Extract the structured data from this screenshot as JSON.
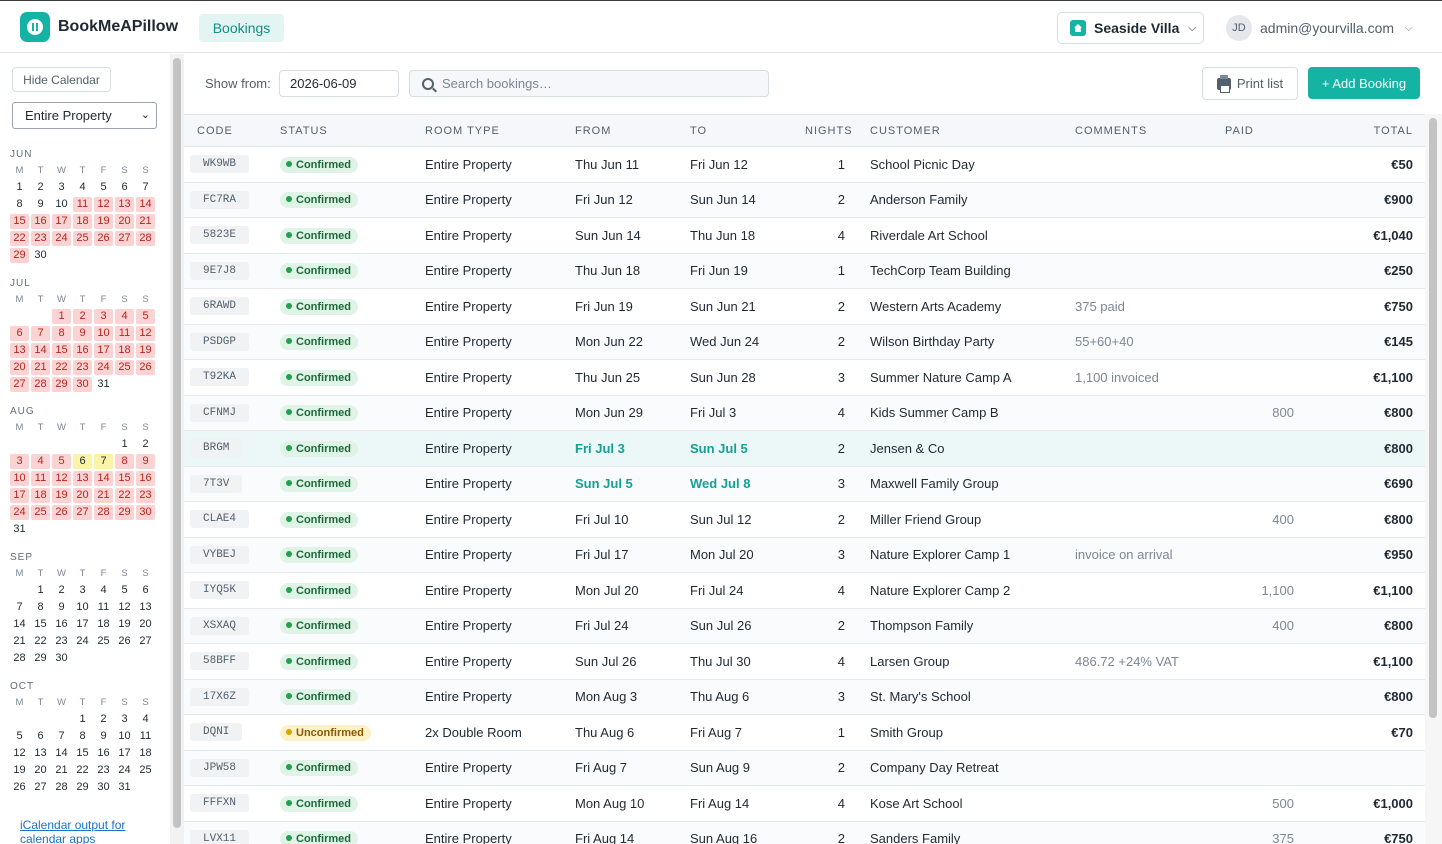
{
  "header": {
    "app_title": "BookMeAPillow",
    "nav_tab": "Bookings",
    "property": "Seaside Villa",
    "user_initials": "JD",
    "user_email": "admin@yourvilla.com"
  },
  "sidebar": {
    "hide_calendar": "Hide Calendar",
    "property_filter": "Entire Property",
    "weekday_headers": [
      "M",
      "T",
      "W",
      "T",
      "F",
      "S",
      "S"
    ],
    "months": [
      {
        "name": "JUN",
        "offset": 0,
        "days": 30,
        "booked": [
          11,
          12,
          13,
          14,
          15,
          16,
          17,
          18,
          19,
          20,
          21,
          22,
          23,
          24,
          25,
          26,
          27,
          28,
          29
        ],
        "highlight": []
      },
      {
        "name": "JUL",
        "offset": 2,
        "days": 31,
        "booked": [
          1,
          2,
          3,
          4,
          5,
          6,
          7,
          8,
          9,
          10,
          11,
          12,
          13,
          14,
          15,
          16,
          17,
          18,
          19,
          20,
          21,
          22,
          23,
          24,
          25,
          26,
          27,
          28,
          29,
          30
        ],
        "highlight": []
      },
      {
        "name": "AUG",
        "offset": 5,
        "days": 31,
        "booked": [
          3,
          4,
          5,
          7,
          8,
          9,
          10,
          11,
          12,
          13,
          14,
          15,
          16,
          17,
          18,
          19,
          20,
          21,
          22,
          23,
          24,
          25,
          26,
          27,
          28,
          29,
          30
        ],
        "highlight": [
          6,
          7
        ]
      },
      {
        "name": "SEP",
        "offset": 1,
        "days": 30,
        "booked": [],
        "highlight": []
      },
      {
        "name": "OCT",
        "offset": 3,
        "days": 31,
        "booked": [],
        "highlight": []
      }
    ],
    "ical_link": "iCalendar output for calendar apps"
  },
  "toolbar": {
    "show_from_label": "Show from:",
    "show_from_value": "2026-06-09",
    "search_placeholder": "Search bookings…",
    "print_label": "Print list",
    "add_label": "+ Add Booking"
  },
  "table": {
    "columns": [
      "CODE",
      "STATUS",
      "ROOM TYPE",
      "FROM",
      "TO",
      "NIGHTS",
      "CUSTOMER",
      "COMMENTS",
      "PAID",
      "TOTAL"
    ],
    "rows": [
      {
        "code": "WK9WB",
        "status": "Confirmed",
        "room": "Entire Property",
        "from": "Thu Jun 11",
        "to": "Fri Jun 12",
        "nights": "1",
        "customer": "School Picnic Day",
        "comments": "",
        "paid": "",
        "total": "€50"
      },
      {
        "code": "FC7RA",
        "status": "Confirmed",
        "room": "Entire Property",
        "from": "Fri Jun 12",
        "to": "Sun Jun 14",
        "nights": "2",
        "customer": "Anderson Family",
        "comments": "",
        "paid": "",
        "total": "€900"
      },
      {
        "code": "5823E",
        "status": "Confirmed",
        "room": "Entire Property",
        "from": "Sun Jun 14",
        "to": "Thu Jun 18",
        "nights": "4",
        "customer": "Riverdale Art School",
        "comments": "",
        "paid": "",
        "total": "€1,040"
      },
      {
        "code": "9E7J8",
        "status": "Confirmed",
        "room": "Entire Property",
        "from": "Thu Jun 18",
        "to": "Fri Jun 19",
        "nights": "1",
        "customer": "TechCorp Team Building",
        "comments": "",
        "paid": "",
        "total": "€250"
      },
      {
        "code": "6RAWD",
        "status": "Confirmed",
        "room": "Entire Property",
        "from": "Fri Jun 19",
        "to": "Sun Jun 21",
        "nights": "2",
        "customer": "Western Arts Academy",
        "comments": "375 paid",
        "paid": "",
        "total": "€750"
      },
      {
        "code": "PSDGP",
        "status": "Confirmed",
        "room": "Entire Property",
        "from": "Mon Jun 22",
        "to": "Wed Jun 24",
        "nights": "2",
        "customer": "Wilson Birthday Party",
        "comments": "55+60+40",
        "paid": "",
        "total": "€145"
      },
      {
        "code": "T92KA",
        "status": "Confirmed",
        "room": "Entire Property",
        "from": "Thu Jun 25",
        "to": "Sun Jun 28",
        "nights": "3",
        "customer": "Summer Nature Camp A",
        "comments": "1,100 invoiced",
        "paid": "",
        "total": "€1,100"
      },
      {
        "code": "CFNMJ",
        "status": "Confirmed",
        "room": "Entire Property",
        "from": "Mon Jun 29",
        "to": "Fri Jul 3",
        "nights": "4",
        "customer": "Kids Summer Camp B",
        "comments": "",
        "paid": "800",
        "total": "€800"
      },
      {
        "code": "BRGM",
        "status": "Confirmed",
        "room": "Entire Property",
        "from": "Fri Jul 3",
        "to": "Sun Jul 5",
        "nights": "2",
        "customer": "Jensen & Co",
        "comments": "",
        "paid": "",
        "total": "€800",
        "current": true
      },
      {
        "code": "7T3V",
        "status": "Confirmed",
        "room": "Entire Property",
        "from": "Sun Jul 5",
        "to": "Wed Jul 8",
        "nights": "3",
        "customer": "Maxwell Family Group",
        "comments": "",
        "paid": "",
        "total": "€690",
        "teal": true
      },
      {
        "code": "CLAE4",
        "status": "Confirmed",
        "room": "Entire Property",
        "from": "Fri Jul 10",
        "to": "Sun Jul 12",
        "nights": "2",
        "customer": "Miller Friend Group",
        "comments": "",
        "paid": "400",
        "total": "€800"
      },
      {
        "code": "VYBEJ",
        "status": "Confirmed",
        "room": "Entire Property",
        "from": "Fri Jul 17",
        "to": "Mon Jul 20",
        "nights": "3",
        "customer": "Nature Explorer Camp 1",
        "comments": "invoice on arrival",
        "paid": "",
        "total": "€950"
      },
      {
        "code": "IYQ5K",
        "status": "Confirmed",
        "room": "Entire Property",
        "from": "Mon Jul 20",
        "to": "Fri Jul 24",
        "nights": "4",
        "customer": "Nature Explorer Camp 2",
        "comments": "",
        "paid": "1,100",
        "total": "€1,100"
      },
      {
        "code": "XSXAQ",
        "status": "Confirmed",
        "room": "Entire Property",
        "from": "Fri Jul 24",
        "to": "Sun Jul 26",
        "nights": "2",
        "customer": "Thompson Family",
        "comments": "",
        "paid": "400",
        "total": "€800"
      },
      {
        "code": "58BFF",
        "status": "Confirmed",
        "room": "Entire Property",
        "from": "Sun Jul 26",
        "to": "Thu Jul 30",
        "nights": "4",
        "customer": "Larsen Group",
        "comments": "486.72 +24% VAT",
        "paid": "",
        "total": "€1,100"
      },
      {
        "code": "17X6Z",
        "status": "Confirmed",
        "room": "Entire Property",
        "from": "Mon Aug 3",
        "to": "Thu Aug 6",
        "nights": "3",
        "customer": "St. Mary's School",
        "comments": "",
        "paid": "",
        "total": "€800"
      },
      {
        "code": "DQNI",
        "status": "Unconfirmed",
        "room": "2x Double Room",
        "from": "Thu Aug 6",
        "to": "Fri Aug 7",
        "nights": "1",
        "customer": "Smith Group",
        "comments": "",
        "paid": "",
        "total": "€70"
      },
      {
        "code": "JPW58",
        "status": "Confirmed",
        "room": "Entire Property",
        "from": "Fri Aug 7",
        "to": "Sun Aug 9",
        "nights": "2",
        "customer": "Company Day Retreat",
        "comments": "",
        "paid": "",
        "total": ""
      },
      {
        "code": "FFFXN",
        "status": "Confirmed",
        "room": "Entire Property",
        "from": "Mon Aug 10",
        "to": "Fri Aug 14",
        "nights": "4",
        "customer": "Kose Art School",
        "comments": "",
        "paid": "500",
        "total": "€1,000"
      },
      {
        "code": "LVX11",
        "status": "Confirmed",
        "room": "Entire Property",
        "from": "Fri Aug 14",
        "to": "Sun Aug 16",
        "nights": "2",
        "customer": "Sanders Family",
        "comments": "",
        "paid": "375",
        "total": "€750"
      }
    ]
  }
}
